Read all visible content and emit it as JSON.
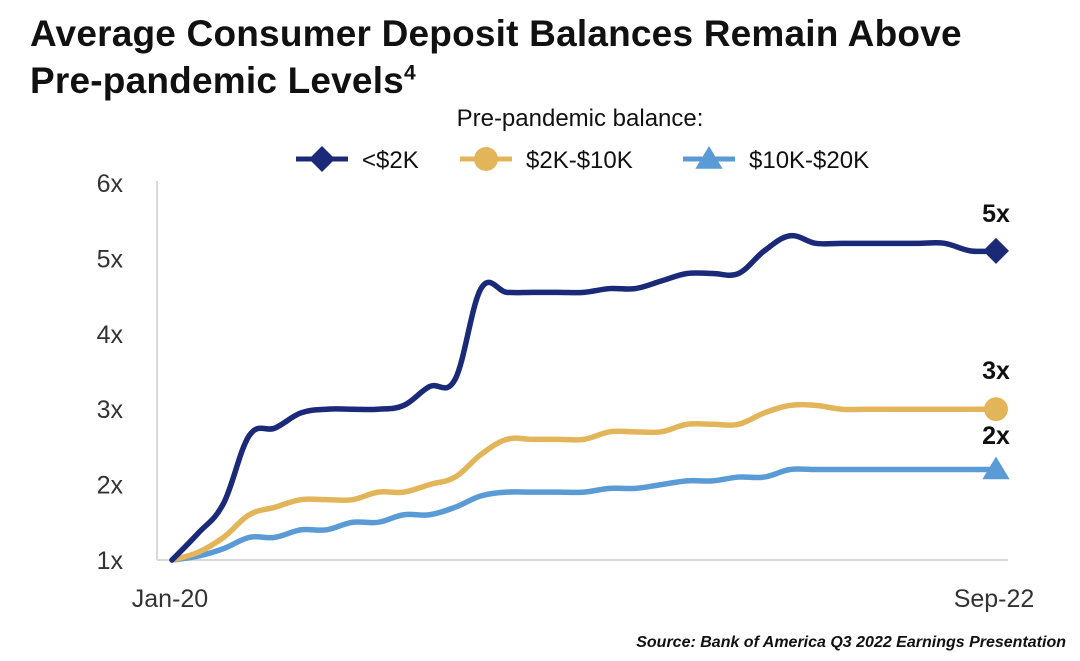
{
  "title": "Average Consumer Deposit Balances Remain Above",
  "title_line2": "Pre-pandemic Levels",
  "title_footnote": "4",
  "source": "Source: Bank of America Q3 2022 Earnings Presentation",
  "chart_data": {
    "type": "line",
    "legend_title": "Pre-pandemic balance:",
    "legend_position": "top",
    "grid": false,
    "x": [
      "Jan-20",
      "Feb-20",
      "Mar-20",
      "Apr-20",
      "May-20",
      "Jun-20",
      "Jul-20",
      "Aug-20",
      "Sep-20",
      "Oct-20",
      "Nov-20",
      "Dec-20",
      "Jan-21",
      "Feb-21",
      "Mar-21",
      "Apr-21",
      "May-21",
      "Jun-21",
      "Jul-21",
      "Aug-21",
      "Sep-21",
      "Oct-21",
      "Nov-21",
      "Dec-21",
      "Jan-22",
      "Feb-22",
      "Mar-22",
      "Apr-22",
      "May-22",
      "Jun-22",
      "Jul-22",
      "Aug-22",
      "Sep-22"
    ],
    "x_tick_labels": [
      "Jan-20",
      "Sep-22"
    ],
    "y_tick_labels": [
      "1x",
      "2x",
      "3x",
      "4x",
      "5x",
      "6x"
    ],
    "ylim": [
      1,
      6
    ],
    "series": [
      {
        "name": "<$2K",
        "color": "#1b2a78",
        "marker": "diamond",
        "end_label": "5x",
        "values": [
          1.0,
          1.35,
          1.75,
          2.65,
          2.75,
          2.95,
          3.0,
          3.0,
          3.0,
          3.05,
          3.3,
          3.4,
          4.6,
          4.55,
          4.55,
          4.55,
          4.55,
          4.6,
          4.6,
          4.7,
          4.8,
          4.8,
          4.8,
          5.1,
          5.3,
          5.2,
          5.2,
          5.2,
          5.2,
          5.2,
          5.2,
          5.1,
          5.1
        ]
      },
      {
        "name": "$2K-$10K",
        "color": "#e3b55a",
        "marker": "circle",
        "end_label": "3x",
        "values": [
          1.0,
          1.1,
          1.3,
          1.6,
          1.7,
          1.8,
          1.8,
          1.8,
          1.9,
          1.9,
          2.0,
          2.1,
          2.4,
          2.6,
          2.6,
          2.6,
          2.6,
          2.7,
          2.7,
          2.7,
          2.8,
          2.8,
          2.8,
          2.95,
          3.05,
          3.05,
          3.0,
          3.0,
          3.0,
          3.0,
          3.0,
          3.0,
          3.0
        ]
      },
      {
        "name": "$10K-$20K",
        "color": "#5b9bd5",
        "marker": "triangle",
        "end_label": "2x",
        "values": [
          1.0,
          1.05,
          1.15,
          1.3,
          1.3,
          1.4,
          1.4,
          1.5,
          1.5,
          1.6,
          1.6,
          1.7,
          1.85,
          1.9,
          1.9,
          1.9,
          1.9,
          1.95,
          1.95,
          2.0,
          2.05,
          2.05,
          2.1,
          2.1,
          2.2,
          2.2,
          2.2,
          2.2,
          2.2,
          2.2,
          2.2,
          2.2,
          2.2
        ]
      }
    ]
  }
}
